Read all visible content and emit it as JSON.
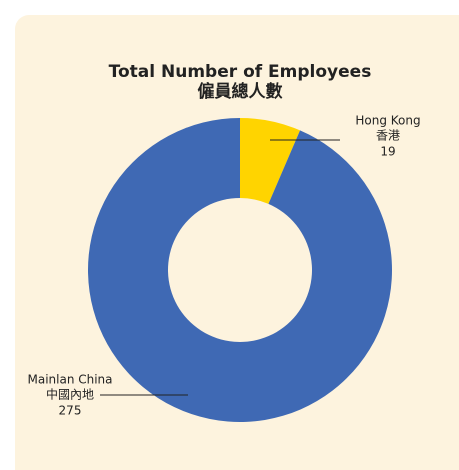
{
  "chart_data": {
    "type": "donut",
    "title": "Total Number of Employees",
    "subtitle": "僱員總人數",
    "categories": [
      "Hong Kong",
      "Mainlan China"
    ],
    "category_labels_zh": [
      "香港",
      "中國內地"
    ],
    "values": [
      19,
      275
    ],
    "colors": [
      "#ffd400",
      "#3f69b4"
    ]
  }
}
